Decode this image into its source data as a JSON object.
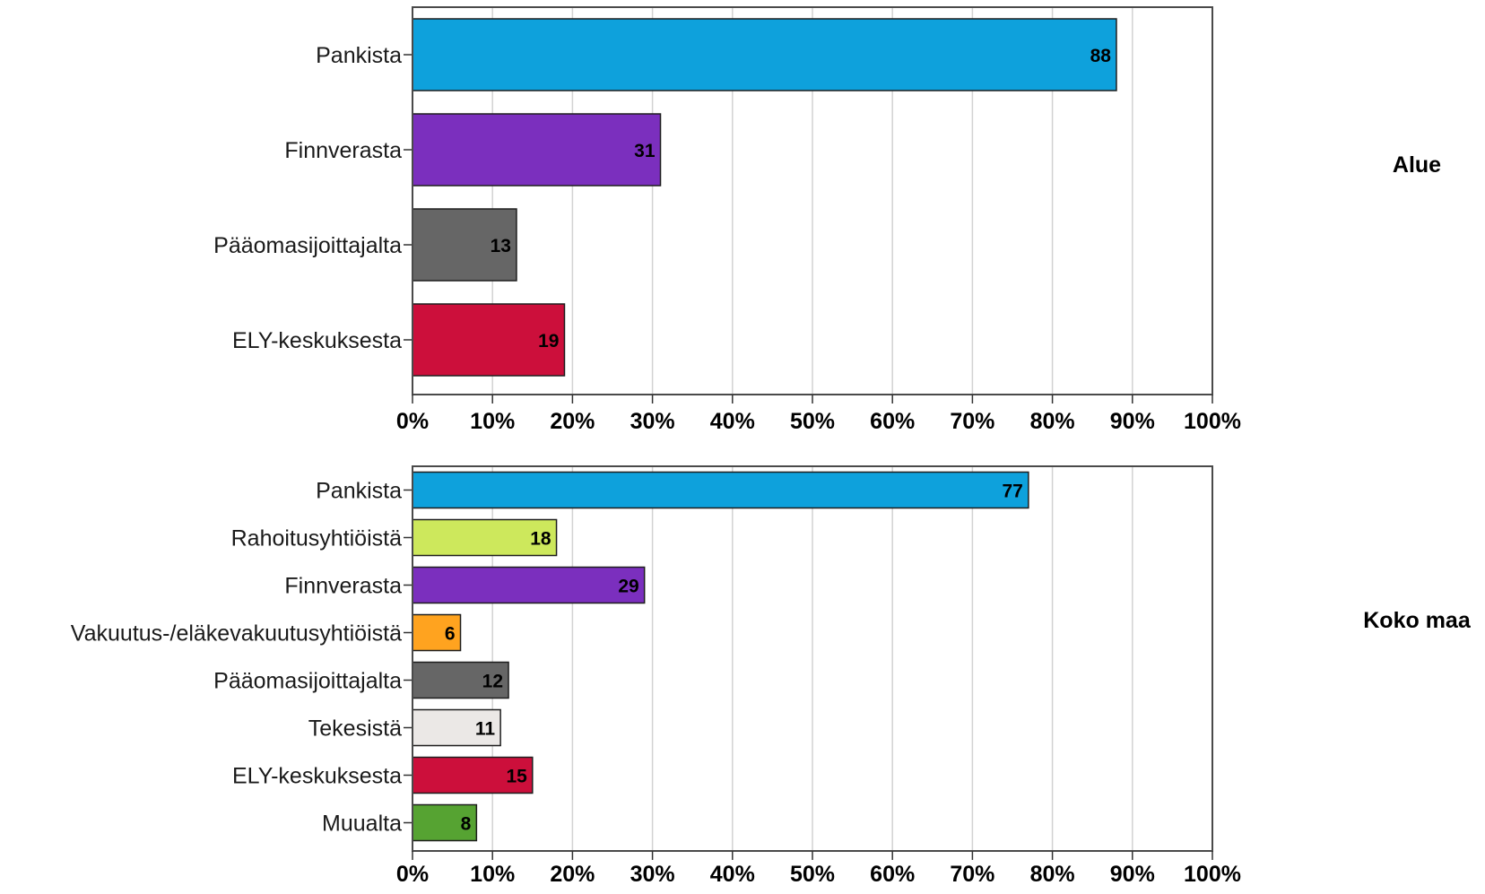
{
  "chart_data": [
    {
      "type": "bar",
      "orientation": "horizontal",
      "panel_label": "Alue",
      "categories": [
        "Pankista",
        "Finnverasta",
        "Pääomasijoittajalta",
        "ELY-keskuksesta"
      ],
      "values": [
        88,
        31,
        13,
        19
      ],
      "value_labels": [
        "88",
        "31",
        "13",
        "19"
      ],
      "colors": [
        "#0ea1dc",
        "#7b2fbe",
        "#666666",
        "#cc0f3b"
      ],
      "xlim": [
        0,
        100
      ],
      "x_ticks": [
        0,
        10,
        20,
        30,
        40,
        50,
        60,
        70,
        80,
        90,
        100
      ],
      "x_tick_labels": [
        "0%",
        "10%",
        "20%",
        "30%",
        "40%",
        "50%",
        "60%",
        "70%",
        "80%",
        "90%",
        "100%"
      ],
      "grid": "vertical"
    },
    {
      "type": "bar",
      "orientation": "horizontal",
      "panel_label": "Koko maa",
      "categories": [
        "Pankista",
        "Rahoitusyhtiöistä",
        "Finnverasta",
        "Vakuutus-/eläkevakuutusyhtiöistä",
        "Pääomasijoittajalta",
        "Tekesistä",
        "ELY-keskuksesta",
        "Muualta"
      ],
      "values": [
        77,
        18,
        29,
        6,
        12,
        11,
        15,
        8
      ],
      "value_labels": [
        "77",
        "18",
        "29",
        "6",
        "12",
        "11",
        "15",
        "8"
      ],
      "colors": [
        "#0ea1dc",
        "#cde85c",
        "#7b2fbe",
        "#ffa31f",
        "#666666",
        "#ebe8e6",
        "#cc0f3b",
        "#56a332"
      ],
      "xlim": [
        0,
        100
      ],
      "x_ticks": [
        0,
        10,
        20,
        30,
        40,
        50,
        60,
        70,
        80,
        90,
        100
      ],
      "x_tick_labels": [
        "0%",
        "10%",
        "20%",
        "30%",
        "40%",
        "50%",
        "60%",
        "70%",
        "80%",
        "90%",
        "100%"
      ],
      "grid": "vertical"
    }
  ]
}
